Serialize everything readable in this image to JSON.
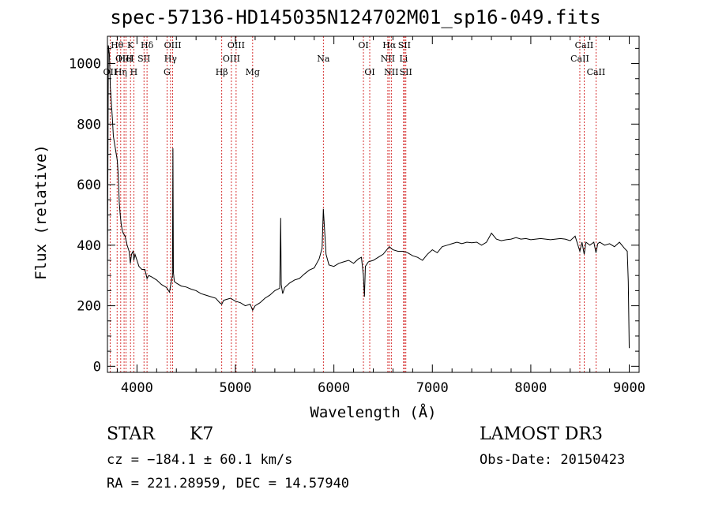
{
  "title": "spec-57136-HD145035N124702M01_sp16-049.fits",
  "footer": {
    "object_class": "STAR",
    "subclass": "K7",
    "survey": "LAMOST DR3",
    "cz": "cz = −184.1 ± 60.1 km/s",
    "obs_date": "Obs-Date: 20150423",
    "coords": "RA = 221.28959, DEC =  14.57940"
  },
  "chart_data": {
    "type": "line",
    "xlabel": "Wavelength (Å)",
    "ylabel": "Flux (relative)",
    "xlim": [
      3700,
      9100
    ],
    "ylim": [
      -20,
      1090
    ],
    "xticks": [
      4000,
      5000,
      6000,
      7000,
      8000,
      9000
    ],
    "yticks": [
      0,
      200,
      400,
      600,
      800,
      1000
    ],
    "line_color": "#000000",
    "marker_color": "#cc0000",
    "series": [
      {
        "points": [
          [
            3700,
            280
          ],
          [
            3710,
            1060
          ],
          [
            3720,
            1030
          ],
          [
            3730,
            920
          ],
          [
            3740,
            870
          ],
          [
            3750,
            820
          ],
          [
            3760,
            760
          ],
          [
            3770,
            740
          ],
          [
            3780,
            720
          ],
          [
            3790,
            700
          ],
          [
            3800,
            680
          ],
          [
            3810,
            630
          ],
          [
            3820,
            540
          ],
          [
            3830,
            500
          ],
          [
            3840,
            470
          ],
          [
            3850,
            450
          ],
          [
            3860,
            440
          ],
          [
            3880,
            430
          ],
          [
            3900,
            400
          ],
          [
            3920,
            380
          ],
          [
            3933,
            340
          ],
          [
            3945,
            370
          ],
          [
            3960,
            380
          ],
          [
            3968,
            350
          ],
          [
            3980,
            370
          ],
          [
            4000,
            350
          ],
          [
            4020,
            330
          ],
          [
            4050,
            320
          ],
          [
            4080,
            320
          ],
          [
            4102,
            290
          ],
          [
            4120,
            300
          ],
          [
            4150,
            295
          ],
          [
            4200,
            285
          ],
          [
            4250,
            270
          ],
          [
            4300,
            260
          ],
          [
            4330,
            245
          ],
          [
            4340,
            265
          ],
          [
            4360,
            300
          ],
          [
            4365,
            720
          ],
          [
            4370,
            310
          ],
          [
            4380,
            280
          ],
          [
            4400,
            275
          ],
          [
            4450,
            265
          ],
          [
            4500,
            262
          ],
          [
            4550,
            255
          ],
          [
            4600,
            250
          ],
          [
            4650,
            240
          ],
          [
            4700,
            235
          ],
          [
            4750,
            230
          ],
          [
            4800,
            225
          ],
          [
            4840,
            210
          ],
          [
            4861,
            205
          ],
          [
            4880,
            218
          ],
          [
            4900,
            220
          ],
          [
            4950,
            225
          ],
          [
            5000,
            215
          ],
          [
            5050,
            210
          ],
          [
            5100,
            200
          ],
          [
            5150,
            205
          ],
          [
            5175,
            185
          ],
          [
            5200,
            200
          ],
          [
            5250,
            210
          ],
          [
            5300,
            225
          ],
          [
            5350,
            235
          ],
          [
            5400,
            250
          ],
          [
            5450,
            258
          ],
          [
            5460,
            490
          ],
          [
            5465,
            270
          ],
          [
            5480,
            240
          ],
          [
            5500,
            260
          ],
          [
            5550,
            275
          ],
          [
            5600,
            285
          ],
          [
            5650,
            290
          ],
          [
            5700,
            305
          ],
          [
            5750,
            318
          ],
          [
            5800,
            325
          ],
          [
            5850,
            355
          ],
          [
            5880,
            390
          ],
          [
            5893,
            520
          ],
          [
            5900,
            480
          ],
          [
            5920,
            370
          ],
          [
            5950,
            335
          ],
          [
            6000,
            330
          ],
          [
            6050,
            340
          ],
          [
            6100,
            345
          ],
          [
            6150,
            350
          ],
          [
            6200,
            340
          ],
          [
            6250,
            355
          ],
          [
            6280,
            360
          ],
          [
            6300,
            300
          ],
          [
            6310,
            230
          ],
          [
            6320,
            330
          ],
          [
            6350,
            345
          ],
          [
            6400,
            350
          ],
          [
            6450,
            360
          ],
          [
            6500,
            370
          ],
          [
            6563,
            395
          ],
          [
            6600,
            385
          ],
          [
            6650,
            380
          ],
          [
            6700,
            380
          ],
          [
            6750,
            375
          ],
          [
            6800,
            365
          ],
          [
            6850,
            360
          ],
          [
            6900,
            350
          ],
          [
            6950,
            370
          ],
          [
            7000,
            385
          ],
          [
            7050,
            375
          ],
          [
            7100,
            395
          ],
          [
            7150,
            400
          ],
          [
            7200,
            405
          ],
          [
            7250,
            410
          ],
          [
            7300,
            405
          ],
          [
            7350,
            410
          ],
          [
            7400,
            408
          ],
          [
            7450,
            410
          ],
          [
            7500,
            400
          ],
          [
            7550,
            410
          ],
          [
            7600,
            440
          ],
          [
            7650,
            420
          ],
          [
            7700,
            415
          ],
          [
            7750,
            418
          ],
          [
            7800,
            420
          ],
          [
            7850,
            425
          ],
          [
            7900,
            420
          ],
          [
            7950,
            422
          ],
          [
            8000,
            418
          ],
          [
            8050,
            420
          ],
          [
            8100,
            422
          ],
          [
            8150,
            420
          ],
          [
            8200,
            418
          ],
          [
            8250,
            420
          ],
          [
            8300,
            422
          ],
          [
            8350,
            420
          ],
          [
            8400,
            415
          ],
          [
            8450,
            430
          ],
          [
            8498,
            380
          ],
          [
            8520,
            410
          ],
          [
            8542,
            370
          ],
          [
            8560,
            410
          ],
          [
            8600,
            400
          ],
          [
            8640,
            410
          ],
          [
            8662,
            375
          ],
          [
            8680,
            405
          ],
          [
            8700,
            410
          ],
          [
            8750,
            400
          ],
          [
            8800,
            405
          ],
          [
            8850,
            395
          ],
          [
            8900,
            410
          ],
          [
            8950,
            390
          ],
          [
            8980,
            380
          ],
          [
            8990,
            280
          ],
          [
            9000,
            60
          ]
        ]
      }
    ],
    "line_markers": [
      {
        "label": "OII",
        "wl": 3727,
        "row": 3
      },
      {
        "label": "Hθ",
        "wl": 3798,
        "row": 1
      },
      {
        "label": "OIII",
        "wl": 3869,
        "row": 2
      },
      {
        "label": "Hη",
        "wl": 3835,
        "row": 3
      },
      {
        "label": "K",
        "wl": 3934,
        "row": 1
      },
      {
        "label": "HeI",
        "wl": 3889,
        "row": 2
      },
      {
        "label": "H",
        "wl": 3968,
        "row": 3
      },
      {
        "label": "SII",
        "wl": 4071,
        "row": 2
      },
      {
        "label": "Hδ",
        "wl": 4102,
        "row": 1
      },
      {
        "label": "OIII",
        "wl": 4363,
        "row": 1
      },
      {
        "label": "Hγ",
        "wl": 4341,
        "row": 2
      },
      {
        "label": "G",
        "wl": 4305,
        "row": 3
      },
      {
        "label": "Hβ",
        "wl": 4861,
        "row": 3
      },
      {
        "label": "OIII",
        "wl": 5007,
        "row": 1
      },
      {
        "label": "OIII",
        "wl": 4959,
        "row": 2
      },
      {
        "label": "Mg",
        "wl": 5175,
        "row": 3
      },
      {
        "label": "Na",
        "wl": 5893,
        "row": 2
      },
      {
        "label": "OI",
        "wl": 6300,
        "row": 1
      },
      {
        "label": "OI",
        "wl": 6364,
        "row": 3
      },
      {
        "label": "Hα",
        "wl": 6563,
        "row": 1
      },
      {
        "label": "NII",
        "wl": 6548,
        "row": 2
      },
      {
        "label": "NII",
        "wl": 6583,
        "row": 3
      },
      {
        "label": "SII",
        "wl": 6716,
        "row": 1
      },
      {
        "label": "Li",
        "wl": 6708,
        "row": 2
      },
      {
        "label": "SII",
        "wl": 6731,
        "row": 3
      },
      {
        "label": "CaII",
        "wl": 8542,
        "row": 1
      },
      {
        "label": "CaII",
        "wl": 8498,
        "row": 2
      },
      {
        "label": "CaII",
        "wl": 8662,
        "row": 3
      }
    ]
  }
}
